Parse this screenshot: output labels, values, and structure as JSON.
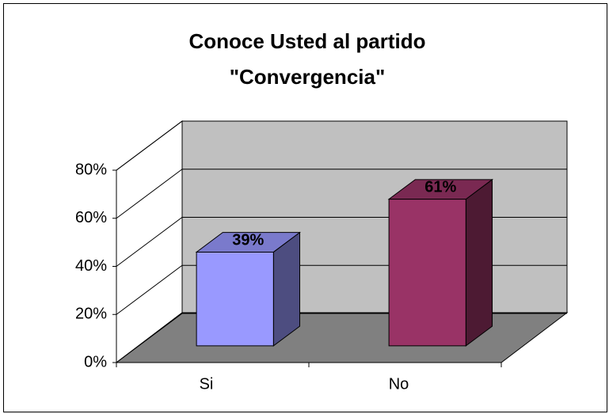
{
  "chart_data": {
    "type": "bar3d",
    "title": "Conoce Usted al partido\n\"Convergencia\"",
    "categories": [
      "Si",
      "No"
    ],
    "series": [
      {
        "colors": [
          "#9999ff",
          "#993366"
        ],
        "values": [
          39,
          61
        ],
        "value_labels": [
          "39%",
          "61%"
        ]
      }
    ],
    "ylim": [
      0,
      80
    ],
    "yticks": [
      {
        "value": 0,
        "label": "0%"
      },
      {
        "value": 20,
        "label": "20%"
      },
      {
        "value": 40,
        "label": "40%"
      },
      {
        "value": 60,
        "label": "60%"
      },
      {
        "value": 80,
        "label": "80%"
      }
    ],
    "grid": true
  }
}
